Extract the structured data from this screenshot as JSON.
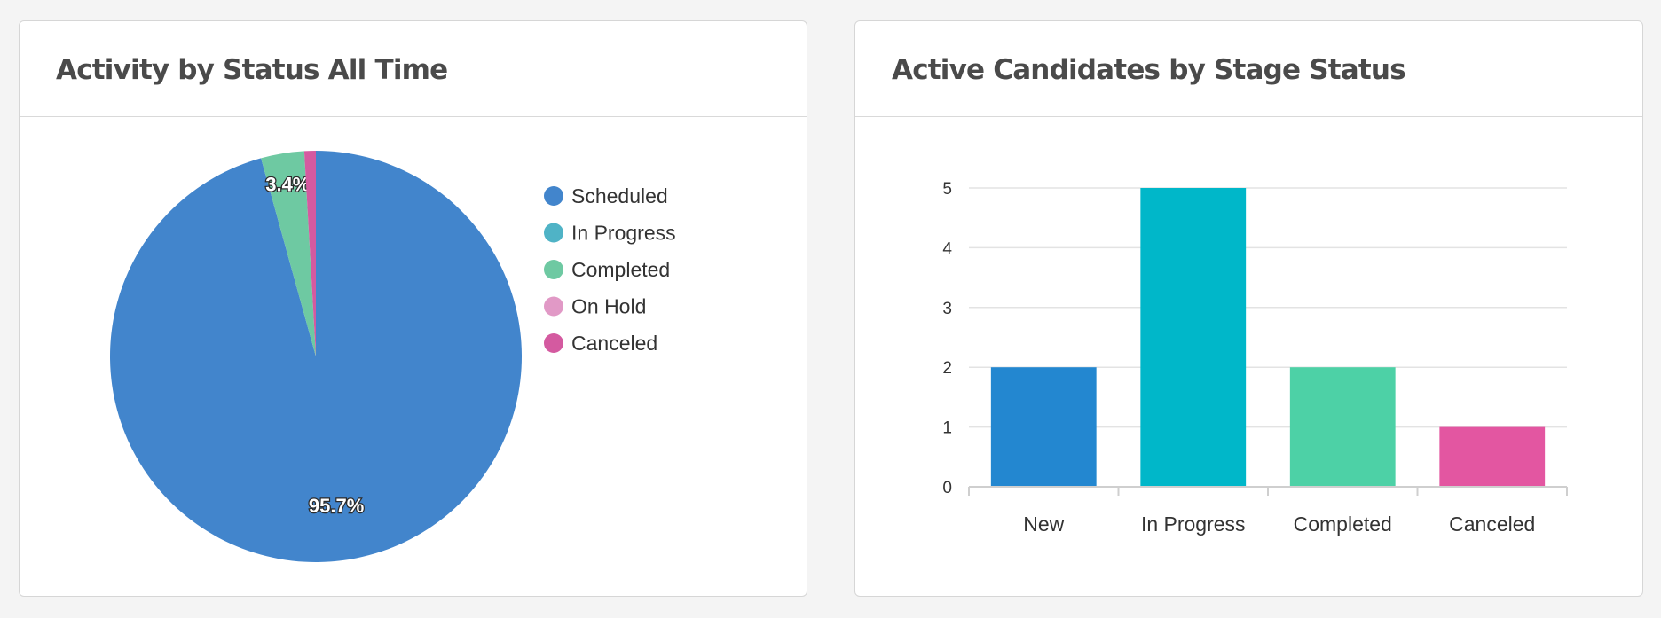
{
  "cards": [
    {
      "title": "Activity by Status All Time"
    },
    {
      "title": "Active Candidates by Stage Status"
    }
  ],
  "chart_data": [
    {
      "type": "pie",
      "title": "Activity by Status All Time",
      "labels": [
        "Scheduled",
        "In Progress",
        "Completed",
        "On Hold",
        "Canceled"
      ],
      "values": [
        95.7,
        0,
        3.4,
        0,
        0.9
      ],
      "colors": [
        "#4285cc",
        "#4fb3c6",
        "#6ec9a2",
        "#e199c6",
        "#d45aa0"
      ],
      "data_labels": [
        "95.7%",
        "",
        "3.4%",
        "",
        ""
      ],
      "legend_position": "right"
    },
    {
      "type": "bar",
      "title": "Active Candidates by Stage Status",
      "categories": [
        "New",
        "In Progress",
        "Completed",
        "Canceled"
      ],
      "values": [
        2,
        5,
        2,
        1
      ],
      "colors": [
        "#2387d0",
        "#00b7c9",
        "#4dd1a6",
        "#e356a1"
      ],
      "ylim": [
        0,
        5
      ],
      "yticks": [
        0,
        1,
        2,
        3,
        4,
        5
      ],
      "grid": true,
      "xlabel": "",
      "ylabel": ""
    }
  ]
}
